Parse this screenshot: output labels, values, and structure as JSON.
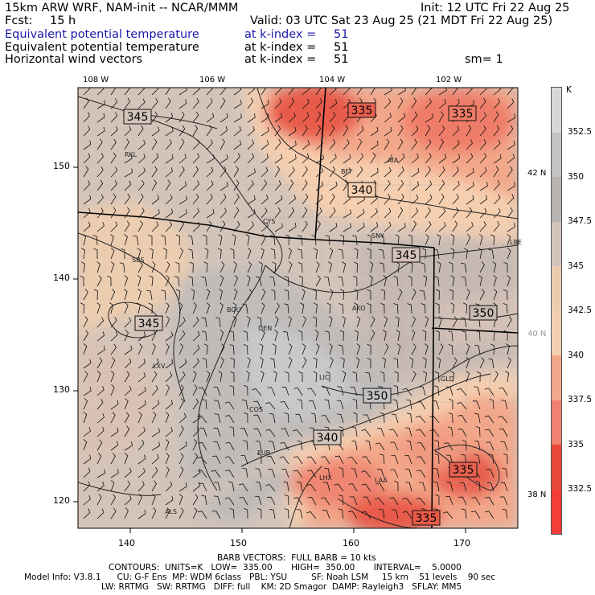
{
  "header": {
    "model": "15km ARW WRF, NAM-init -- NCAR/MMM",
    "init": "Init: 12 UTC Fri 22 Aug 25",
    "fcst_label": "Fcst:",
    "fcst_value": "15 h",
    "valid": "Valid: 03 UTC Sat 23 Aug 25 (21 MDT Fri 22 Aug 25)",
    "rows": [
      {
        "field": "Equivalent potential temperature",
        "level": "at k-index =",
        "index": "51",
        "extra": ""
      },
      {
        "field": "Equivalent potential temperature",
        "level": "at k-index =",
        "index": "51",
        "extra": ""
      },
      {
        "field": "Horizontal wind vectors",
        "level": "at k-index =",
        "index": "51",
        "extra": "sm= 1"
      }
    ]
  },
  "map": {
    "lon_labels": [
      "108 W",
      "106 W",
      "104 W",
      "102 W"
    ],
    "lat_labels": [
      "42 N",
      "40 N",
      "38 N"
    ],
    "y_ticks": [
      "150",
      "140",
      "130",
      "120"
    ],
    "x_ticks": [
      "140",
      "150",
      "160",
      "170"
    ],
    "stations": [
      "RKL",
      "BFF",
      "AIA",
      "CYS",
      "SNY",
      "LBE",
      "SBS",
      "AKO",
      "BOU",
      "DEN",
      "LXV",
      "LIC",
      "GLD",
      "COS",
      "PUB",
      "LHX",
      "LAA",
      "ALS"
    ],
    "contour_labels": [
      "345",
      "335",
      "335",
      "340",
      "345",
      "345",
      "350",
      "350",
      "340",
      "335",
      "335"
    ],
    "colors": {
      "warm": "#f08070",
      "hot": "#e84a3a",
      "cool": "#c8c0bc",
      "gray": "#b8b8b8"
    }
  },
  "colorbar": {
    "unit": "K",
    "labels": [
      "352.5",
      "350",
      "347.5",
      "345",
      "342.5",
      "340",
      "337.5",
      "335",
      "332.5"
    ],
    "colors": [
      "#d8d8d8",
      "#c2c2c2",
      "#b8b4b2",
      "#d2c5bc",
      "#edcdb0",
      "#f5cfb0",
      "#f3a78a",
      "#f08070",
      "#e84a3a",
      "#f43c38"
    ]
  },
  "footer": {
    "line1": "BARB VECTORS:  FULL BARB = 10 kts",
    "line2": "CONTOURS:  UNITS=K   LOW=  335.00       HIGH=  350.00       INTERVAL=    5.0000",
    "line3": "Model Info: V3.8.1      CU: G-F Ens  MP: WDM 6class   PBL: YSU         SF: Noah LSM     15 km    51 levels    90 sec",
    "line4": "LW: RRTMG   SW: RRTMG   DIFF: full    KM: 2D Smagor  DAMP: Rayleigh3   SFLAY: MM5"
  }
}
